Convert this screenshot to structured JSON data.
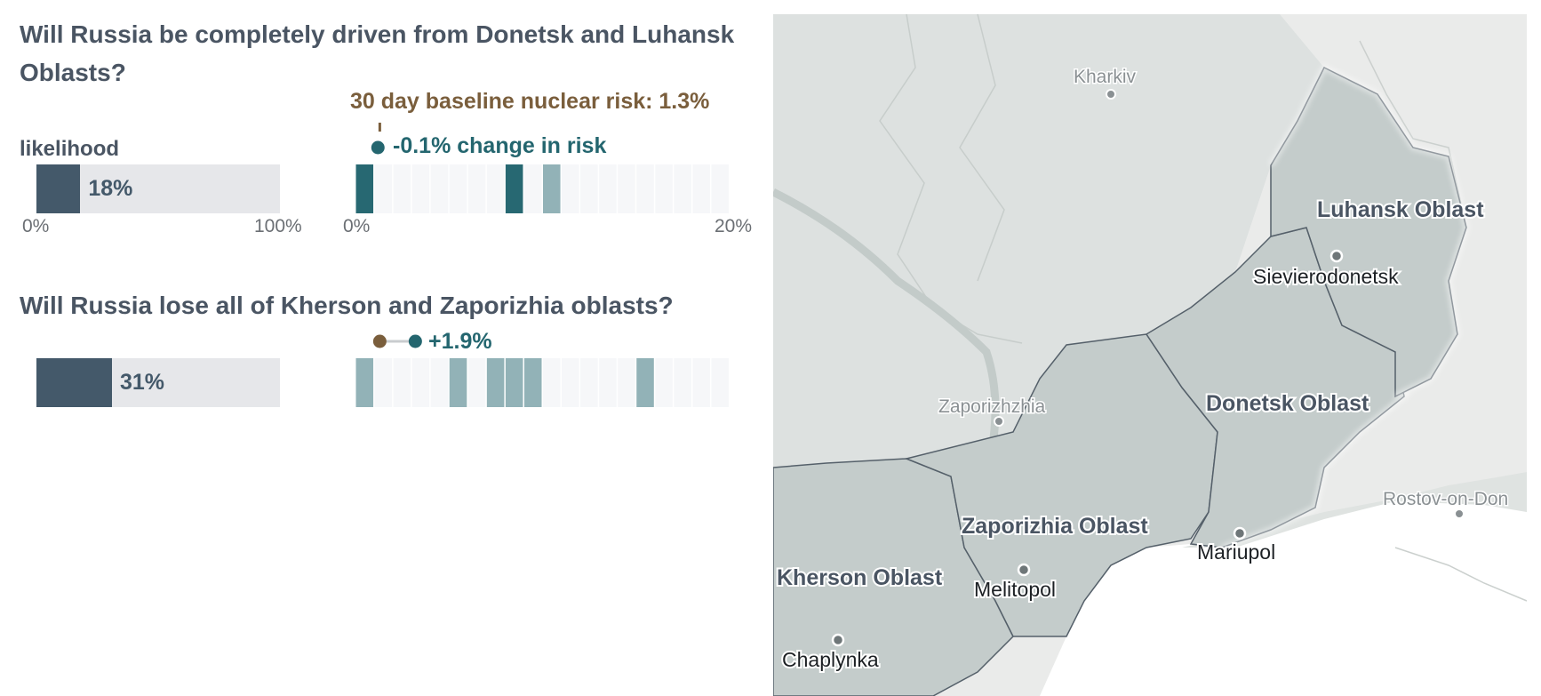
{
  "chart_data": [
    {
      "type": "bar",
      "title": "Will Russia be completely driven from Donetsk and Luhansk Oblasts?",
      "likelihood_label": "likelihood",
      "likelihood": 18,
      "likelihood_text": "18%",
      "likelihood_axis": {
        "min_label": "0%",
        "max_label": "100%",
        "range": [
          0,
          100
        ]
      },
      "baseline_label": "30 day baseline nuclear risk: 1.3%",
      "baseline": 1.3,
      "risk_with_outcome": 1.2,
      "change_label": "-0.1% change in risk",
      "change": -0.1,
      "risk_axis": {
        "min_label": "0%",
        "max_label": "20%",
        "range": [
          0,
          20
        ],
        "bins": 20
      },
      "forecast_bins": [
        {
          "bin": 0,
          "tone": "dark"
        },
        {
          "bin": 8,
          "tone": "dark"
        },
        {
          "bin": 10,
          "tone": "light"
        }
      ]
    },
    {
      "type": "bar",
      "title": "Will Russia lose all of Kherson and Zaporizhia oblasts?",
      "likelihood": 31,
      "likelihood_text": "31%",
      "likelihood_axis": {
        "range": [
          0,
          100
        ]
      },
      "baseline": 1.3,
      "risk_with_outcome": 3.2,
      "change_label": "+1.9%",
      "change": 1.9,
      "risk_axis": {
        "range": [
          0,
          20
        ],
        "bins": 20
      },
      "forecast_bins": [
        {
          "bin": 0,
          "tone": "light"
        },
        {
          "bin": 5,
          "tone": "light"
        },
        {
          "bin": 7,
          "tone": "light"
        },
        {
          "bin": 8,
          "tone": "light"
        },
        {
          "bin": 9,
          "tone": "light"
        },
        {
          "bin": 15,
          "tone": "light"
        }
      ]
    }
  ],
  "colors": {
    "likelihood_fill": "#44596a",
    "likelihood_track": "#e6e7ea",
    "risk_dark": "#276872",
    "risk_light": "#92b2b7",
    "risk_empty": "#f6f7f9",
    "baseline": "#7a5e3c",
    "change": "#24666f"
  },
  "map": {
    "regions": [
      {
        "name": "Luhansk Oblast"
      },
      {
        "name": "Donetsk Oblast"
      },
      {
        "name": "Zaporizhia Oblast"
      },
      {
        "name": "Kherson Oblast"
      }
    ],
    "cities_major": [
      {
        "name": "Sievierodonetsk"
      },
      {
        "name": "Mariupol"
      },
      {
        "name": "Melitopol"
      },
      {
        "name": "Chaplynka"
      }
    ],
    "cities_minor": [
      {
        "name": "Kharkiv"
      },
      {
        "name": "Zaporizhzhia"
      },
      {
        "name": "Rostov-on-Don"
      }
    ]
  }
}
